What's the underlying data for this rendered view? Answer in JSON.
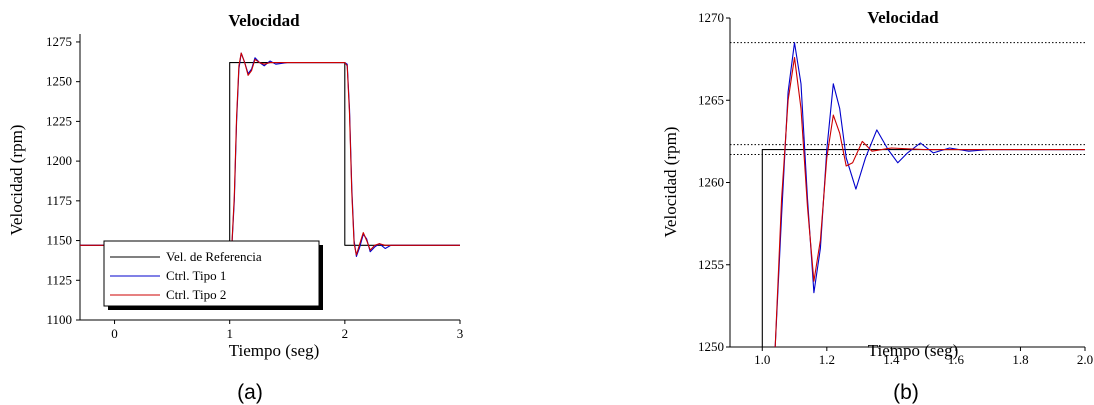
{
  "chart_data": [
    {
      "panel": "a",
      "type": "line",
      "caption": "(a)",
      "title": "Velocidad",
      "xlabel": "Tiempo (seg)",
      "ylabel": "Velocidad (rpm)",
      "xlim": [
        -0.3,
        3.0
      ],
      "ylim": [
        1100,
        1280
      ],
      "xticks": [
        0,
        1,
        2,
        3
      ],
      "yticks": [
        1100,
        1125,
        1150,
        1175,
        1200,
        1225,
        1250,
        1275
      ],
      "legend": {
        "placement": "bottom-left",
        "entries": [
          "Vel. de Referencia",
          "Ctrl. Tipo 1",
          "Ctrl. Tipo 2"
        ]
      },
      "series": [
        {
          "name": "Vel. de Referencia",
          "color": "#000000",
          "points": [
            [
              -0.3,
              1147
            ],
            [
              1.0,
              1147
            ],
            [
              1.0,
              1262
            ],
            [
              2.0,
              1262
            ],
            [
              2.0,
              1147
            ],
            [
              3.0,
              1147
            ]
          ]
        },
        {
          "name": "Ctrl. Tipo 1",
          "color": "#0000cc",
          "points": [
            [
              -0.3,
              1147
            ],
            [
              1.0,
              1147
            ],
            [
              1.02,
              1148
            ],
            [
              1.04,
              1175
            ],
            [
              1.06,
              1225
            ],
            [
              1.08,
              1258
            ],
            [
              1.1,
              1268
            ],
            [
              1.13,
              1262
            ],
            [
              1.16,
              1255
            ],
            [
              1.19,
              1258
            ],
            [
              1.22,
              1265
            ],
            [
              1.26,
              1262
            ],
            [
              1.3,
              1260
            ],
            [
              1.35,
              1263
            ],
            [
              1.4,
              1261
            ],
            [
              1.5,
              1262
            ],
            [
              2.0,
              1262
            ],
            [
              2.02,
              1261
            ],
            [
              2.04,
              1233
            ],
            [
              2.06,
              1183
            ],
            [
              2.08,
              1150
            ],
            [
              2.1,
              1140
            ],
            [
              2.13,
              1146
            ],
            [
              2.16,
              1154
            ],
            [
              2.19,
              1151
            ],
            [
              2.22,
              1143
            ],
            [
              2.26,
              1146
            ],
            [
              2.3,
              1148
            ],
            [
              2.35,
              1145
            ],
            [
              2.4,
              1147
            ],
            [
              2.5,
              1147
            ],
            [
              3.0,
              1147
            ]
          ]
        },
        {
          "name": "Ctrl. Tipo 2",
          "color": "#cc0000",
          "points": [
            [
              -0.3,
              1147
            ],
            [
              1.0,
              1147
            ],
            [
              1.02,
              1149
            ],
            [
              1.04,
              1178
            ],
            [
              1.06,
              1228
            ],
            [
              1.08,
              1260
            ],
            [
              1.1,
              1268
            ],
            [
              1.13,
              1262
            ],
            [
              1.16,
              1254
            ],
            [
              1.19,
              1257
            ],
            [
              1.22,
              1264
            ],
            [
              1.26,
              1262
            ],
            [
              1.3,
              1261
            ],
            [
              1.35,
              1262
            ],
            [
              1.45,
              1262
            ],
            [
              2.0,
              1262
            ],
            [
              2.02,
              1260
            ],
            [
              2.04,
              1230
            ],
            [
              2.06,
              1180
            ],
            [
              2.08,
              1148
            ],
            [
              2.1,
              1141
            ],
            [
              2.13,
              1148
            ],
            [
              2.16,
              1155
            ],
            [
              2.19,
              1150
            ],
            [
              2.22,
              1144
            ],
            [
              2.26,
              1147
            ],
            [
              2.3,
              1148
            ],
            [
              2.35,
              1147
            ],
            [
              2.5,
              1147
            ],
            [
              3.0,
              1147
            ]
          ]
        }
      ]
    },
    {
      "panel": "b",
      "type": "line",
      "caption": "(b)",
      "title": "Velocidad",
      "xlabel": "Tiempo (seg)",
      "ylabel": "Velocidad (rpm)",
      "xlim": [
        0.9,
        2.0
      ],
      "ylim": [
        1250,
        1270
      ],
      "xticks": [
        "1.0",
        "1.2",
        "1.4",
        "1.6",
        "1.8",
        "2.0"
      ],
      "yticks": [
        1250,
        1255,
        1260,
        1265,
        1270
      ],
      "reference_lines": [
        1268.5,
        1262.3,
        1261.7
      ],
      "series": [
        {
          "name": "Vel. de Referencia",
          "color": "#000000",
          "points": [
            [
              1.0,
              1250
            ],
            [
              1.0,
              1262
            ],
            [
              2.0,
              1262
            ]
          ]
        },
        {
          "name": "Ctrl. Tipo 1",
          "color": "#0000cc",
          "points": [
            [
              1.04,
              1250
            ],
            [
              1.06,
              1258
            ],
            [
              1.08,
              1265.5
            ],
            [
              1.1,
              1268.5
            ],
            [
              1.12,
              1266
            ],
            [
              1.14,
              1259
            ],
            [
              1.16,
              1253.3
            ],
            [
              1.18,
              1256
            ],
            [
              1.2,
              1262
            ],
            [
              1.22,
              1266
            ],
            [
              1.24,
              1264.5
            ],
            [
              1.26,
              1261.5
            ],
            [
              1.29,
              1259.6
            ],
            [
              1.32,
              1261.5
            ],
            [
              1.355,
              1263.2
            ],
            [
              1.39,
              1262
            ],
            [
              1.42,
              1261.2
            ],
            [
              1.45,
              1261.8
            ],
            [
              1.49,
              1262.4
            ],
            [
              1.53,
              1261.8
            ],
            [
              1.58,
              1262.1
            ],
            [
              1.64,
              1261.9
            ],
            [
              1.7,
              1262
            ],
            [
              2.0,
              1262
            ]
          ]
        },
        {
          "name": "Ctrl. Tipo 2",
          "color": "#cc0000",
          "points": [
            [
              1.04,
              1250
            ],
            [
              1.06,
              1259
            ],
            [
              1.08,
              1265
            ],
            [
              1.1,
              1267.6
            ],
            [
              1.12,
              1264.5
            ],
            [
              1.14,
              1258.5
            ],
            [
              1.16,
              1254
            ],
            [
              1.18,
              1256.5
            ],
            [
              1.2,
              1261.5
            ],
            [
              1.22,
              1264.1
            ],
            [
              1.24,
              1263
            ],
            [
              1.26,
              1261
            ],
            [
              1.28,
              1261.2
            ],
            [
              1.31,
              1262.5
            ],
            [
              1.34,
              1261.9
            ],
            [
              1.4,
              1262.1
            ],
            [
              1.5,
              1262
            ],
            [
              2.0,
              1262
            ]
          ]
        }
      ]
    }
  ]
}
